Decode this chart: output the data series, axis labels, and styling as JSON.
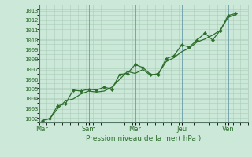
{
  "background_color": "#cce8d8",
  "plot_bg_color": "#cce8d8",
  "grid_color": "#aaccb8",
  "line_color": "#2d6e2d",
  "marker_color": "#2d6e2d",
  "vline_color": "#6699aa",
  "ylabel_values": [
    1002,
    1003,
    1004,
    1005,
    1006,
    1007,
    1008,
    1009,
    1010,
    1011,
    1012,
    1013
  ],
  "ylim": [
    1001.6,
    1013.4
  ],
  "xlabel": "Pression niveau de la mer( hPa )",
  "xtick_labels": [
    "Mar",
    "Sam",
    "Mer",
    "Jeu",
    "Ven"
  ],
  "xtick_positions": [
    0,
    3,
    6,
    9,
    12
  ],
  "xlim": [
    -0.2,
    13.0
  ],
  "line1_x": [
    0,
    0.5,
    1,
    1.5,
    2,
    2.5,
    3,
    3.5,
    4,
    4.5,
    5,
    5.5,
    6,
    6.5,
    7,
    7.5,
    8,
    8.5,
    9,
    9.5,
    10,
    10.5,
    11,
    11.5,
    12,
    12.5
  ],
  "line1_y": [
    1001.8,
    1002.0,
    1003.3,
    1003.5,
    1004.9,
    1004.8,
    1005.0,
    1004.9,
    1005.2,
    1005.0,
    1006.5,
    1006.6,
    1007.5,
    1007.2,
    1006.5,
    1006.5,
    1008.1,
    1008.4,
    1009.5,
    1009.3,
    1010.0,
    1010.7,
    1010.0,
    1011.0,
    1012.5,
    1012.7
  ],
  "line2_x": [
    0,
    0.5,
    1,
    1.5,
    2,
    2.5,
    3,
    3.5,
    4,
    4.5,
    5,
    5.5,
    6,
    6.5,
    7,
    7.5,
    8,
    8.5,
    9,
    9.5,
    10,
    10.5,
    11,
    11.5,
    12,
    12.5
  ],
  "line2_y": [
    1001.8,
    1002.0,
    1003.0,
    1003.8,
    1004.0,
    1004.5,
    1004.8,
    1004.7,
    1004.8,
    1005.2,
    1006.0,
    1006.8,
    1006.6,
    1007.0,
    1006.4,
    1006.6,
    1007.8,
    1008.2,
    1008.8,
    1009.2,
    1009.8,
    1010.1,
    1010.5,
    1011.0,
    1012.3,
    1012.6
  ],
  "figsize": [
    3.2,
    2.0
  ],
  "dpi": 100
}
